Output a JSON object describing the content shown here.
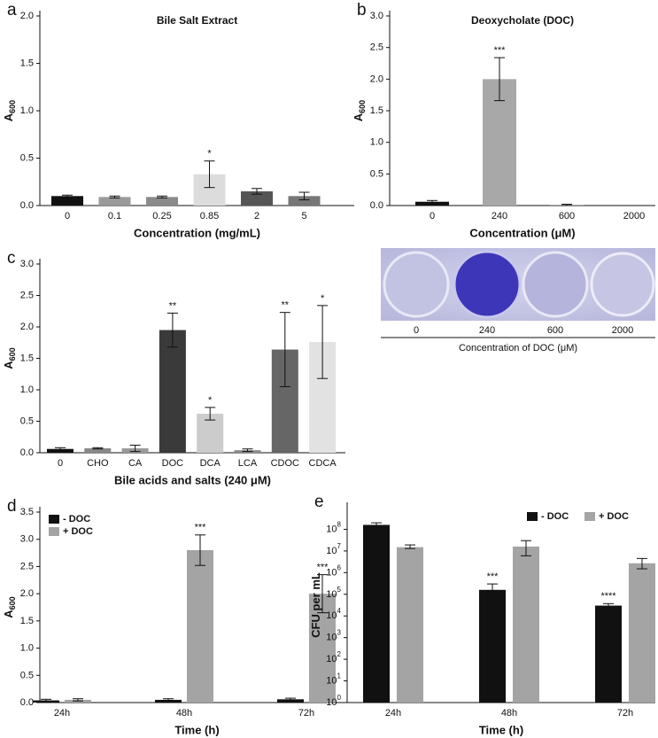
{
  "chart_data": [
    {
      "type": "bar",
      "panel": "a",
      "title": "Bile Salt Extract",
      "categories": [
        "0",
        "0.1",
        "0.25",
        "0.85",
        "2",
        "5"
      ],
      "values": [
        0.1,
        0.09,
        0.09,
        0.33,
        0.15,
        0.1
      ],
      "errors": [
        0.01,
        0.01,
        0.01,
        0.14,
        0.03,
        0.04
      ],
      "annotations": [
        null,
        null,
        null,
        "*",
        null,
        null
      ],
      "colors": [
        "#111111",
        "#9a9a9a",
        "#8a8a8a",
        "#dcdcdc",
        "#555555",
        "#777777"
      ],
      "y_label": "A",
      "y_label_sub": "600",
      "x_label": "Concentration (mg/mL)",
      "ylim": [
        0,
        2
      ],
      "yticks": [
        {
          "value": 0,
          "label": "0.0"
        },
        {
          "value": 0.5,
          "label": "0.5"
        },
        {
          "value": 1,
          "label": "1.0"
        },
        {
          "value": 1.5,
          "label": "1.5"
        },
        {
          "value": 2,
          "label": "2.0"
        }
      ]
    },
    {
      "type": "bar",
      "panel": "b",
      "title": "Deoxycholate (DOC)",
      "categories": [
        "0",
        "240",
        "600",
        "2000"
      ],
      "values": [
        0.06,
        2.0,
        0.01,
        0
      ],
      "errors": [
        0.02,
        0.34,
        0.01,
        0
      ],
      "annotations": [
        null,
        "***",
        null,
        null
      ],
      "colors": [
        "#111111",
        "#a8a8a8",
        "#888888",
        "#888888"
      ],
      "y_label": "A",
      "y_label_sub": "600",
      "x_label": "Concentration (μM)",
      "ylim": [
        0,
        3
      ],
      "yticks": [
        {
          "value": 0,
          "label": "0.0"
        },
        {
          "value": 0.5,
          "label": "0.5"
        },
        {
          "value": 1,
          "label": "1.0"
        },
        {
          "value": 1.5,
          "label": "1.5"
        },
        {
          "value": 2,
          "label": "2.0"
        },
        {
          "value": 2.5,
          "label": "2.5"
        },
        {
          "value": 3,
          "label": "3.0"
        }
      ]
    },
    {
      "type": "bar",
      "panel": "c",
      "categories": [
        "0",
        "CHO",
        "CA",
        "DOC",
        "DCA",
        "LCA",
        "CDOC",
        "CDCA"
      ],
      "values": [
        0.06,
        0.07,
        0.07,
        1.95,
        0.62,
        0.04,
        1.64,
        1.76
      ],
      "errors": [
        0.02,
        0.01,
        0.05,
        0.27,
        0.1,
        0.02,
        0.59,
        0.58
      ],
      "annotations": [
        null,
        null,
        null,
        "**",
        "*",
        null,
        "**",
        "*"
      ],
      "colors": [
        "#111111",
        "#888888",
        "#9a9a9a",
        "#3a3a3a",
        "#cccccc",
        "#8a8a8a",
        "#666666",
        "#e2e2e2"
      ],
      "y_label": "A",
      "y_label_sub": "600",
      "x_label": "Bile acids and salts (240 μM)",
      "ylim": [
        0,
        3
      ],
      "yticks": [
        {
          "value": 0,
          "label": "0.0"
        },
        {
          "value": 0.5,
          "label": "0.5"
        },
        {
          "value": 1,
          "label": "1.0"
        },
        {
          "value": 1.5,
          "label": "1.5"
        },
        {
          "value": 2,
          "label": "2.0"
        },
        {
          "value": 2.5,
          "label": "2.5"
        },
        {
          "value": 3,
          "label": "3.0"
        }
      ]
    },
    {
      "type": "bar",
      "panel": "d",
      "categories": [
        "24h",
        "48h",
        "72h"
      ],
      "series": [
        {
          "name": "- DOC",
          "color": "#111111",
          "values": [
            0.04,
            0.05,
            0.06
          ],
          "errors": [
            0.02,
            0.02,
            0.02
          ],
          "annotations": [
            null,
            null,
            null
          ]
        },
        {
          "name": "+ DOC",
          "color": "#a4a4a4",
          "values": [
            0.05,
            2.8,
            2.0
          ],
          "errors": [
            0.02,
            0.28,
            0.35
          ],
          "annotations": [
            null,
            "***",
            "***"
          ]
        }
      ],
      "legend": "upper left",
      "y_label": "A",
      "y_label_sub": "600",
      "x_label": "Time (h)",
      "ylim": [
        0,
        3.5
      ],
      "yticks": [
        {
          "value": 0,
          "label": "0.0"
        },
        {
          "value": 0.5,
          "label": "0.5"
        },
        {
          "value": 1,
          "label": "1.0"
        },
        {
          "value": 1.5,
          "label": "1.5"
        },
        {
          "value": 2,
          "label": "2.0"
        },
        {
          "value": 2.5,
          "label": "2.5"
        },
        {
          "value": 3,
          "label": "3.0"
        },
        {
          "value": 3.5,
          "label": "3.5"
        }
      ]
    },
    {
      "type": "bar",
      "panel": "e",
      "log_scale": true,
      "categories": [
        "24h",
        "48h",
        "72h"
      ],
      "series": [
        {
          "name": "- DOC",
          "color": "#111111",
          "values": [
            160000000,
            160000,
            30000
          ],
          "errors_minus": [
            20000000,
            70000,
            5000
          ],
          "errors_plus": [
            40000000,
            140000,
            7000
          ],
          "annotations": [
            null,
            "***",
            "****"
          ]
        },
        {
          "name": "+ DOC",
          "color": "#a4a4a4",
          "values": [
            15000000,
            16000000,
            2700000
          ],
          "errors_minus": [
            2000000,
            10000000,
            1200000
          ],
          "errors_plus": [
            4000000,
            14000000,
            1800000
          ],
          "annotations": [
            null,
            null,
            null
          ]
        }
      ],
      "legend": "upper right",
      "y_label": "CFU per mL",
      "x_label": "Time (h)",
      "ylim": [
        1,
        1000000000
      ],
      "yticks": [
        {
          "value": 1,
          "label": "10",
          "sup": "0"
        },
        {
          "value": 10,
          "label": "10",
          "sup": "1"
        },
        {
          "value": 100,
          "label": "10",
          "sup": "2"
        },
        {
          "value": 1000,
          "label": "10",
          "sup": "3"
        },
        {
          "value": 10000,
          "label": "10",
          "sup": "4"
        },
        {
          "value": 100000,
          "label": "10",
          "sup": "5"
        },
        {
          "value": 1000000,
          "label": "10",
          "sup": "6"
        },
        {
          "value": 10000000,
          "label": "10",
          "sup": "7"
        },
        {
          "value": 100000000,
          "label": "10",
          "sup": "8"
        }
      ]
    }
  ],
  "photo": {
    "categories": [
      "0",
      "240",
      "600",
      "2000"
    ],
    "caption": "Concentration of DOC (μM)"
  }
}
